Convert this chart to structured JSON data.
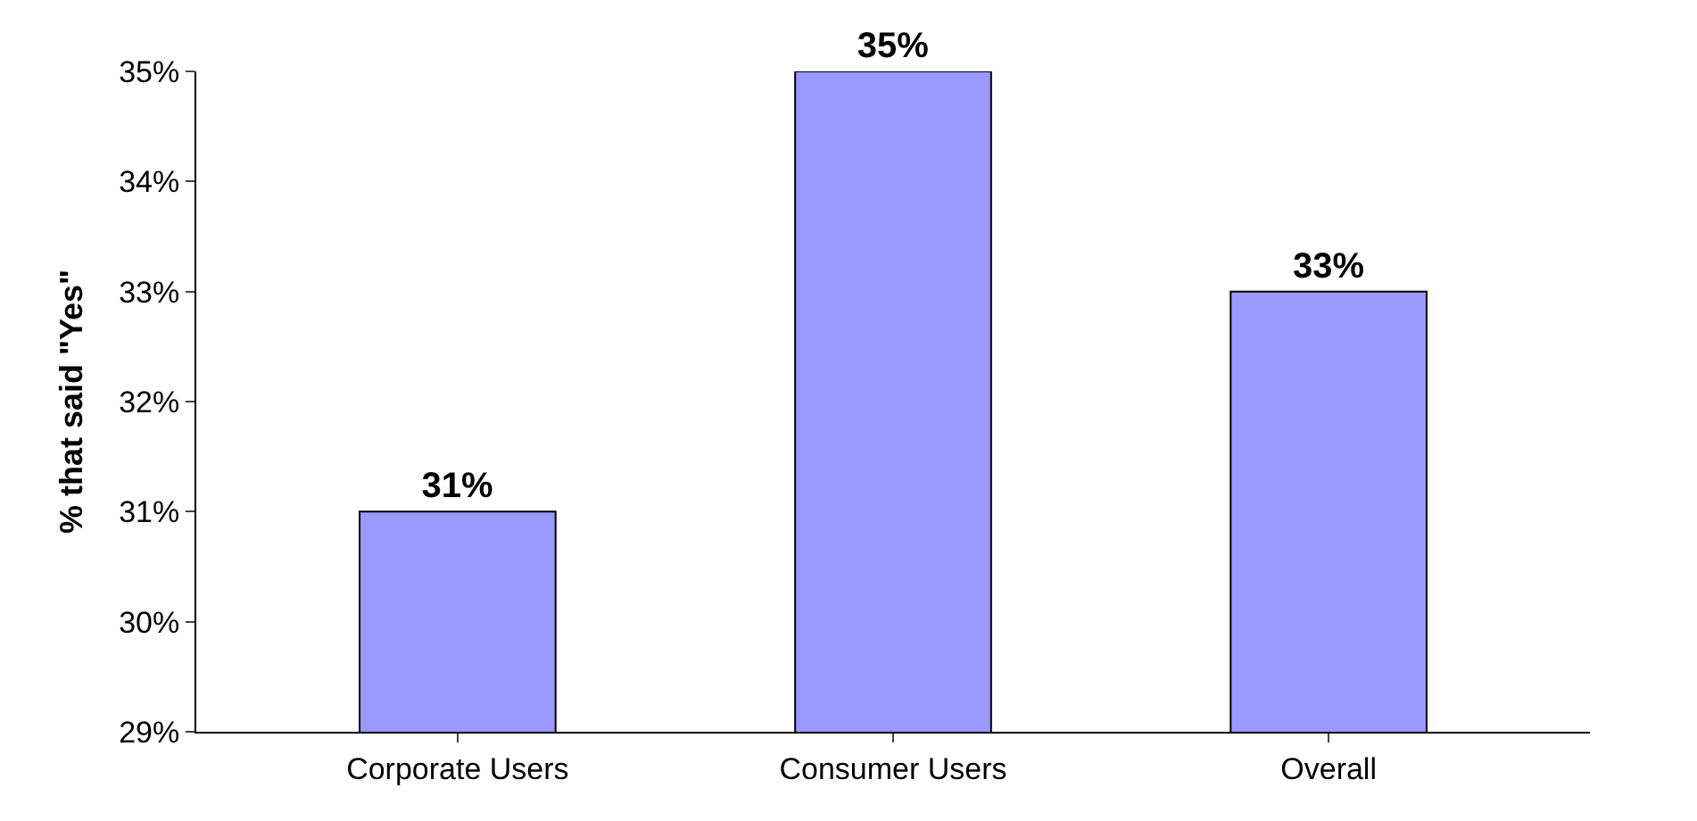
{
  "chart_data": {
    "type": "bar",
    "ylabel": "% that said \"Yes\"",
    "categories": [
      "Corporate Users",
      "Consumer Users",
      "Overall"
    ],
    "values": [
      31,
      35,
      33
    ],
    "value_labels": [
      "31%",
      "35%",
      "33%"
    ],
    "color": "#9999ff",
    "ylim": [
      29,
      35
    ],
    "yticks": [
      {
        "value": 29,
        "label": "29%"
      },
      {
        "value": 30,
        "label": "30%"
      },
      {
        "value": 31,
        "label": "31%"
      },
      {
        "value": 32,
        "label": "32%"
      },
      {
        "value": 33,
        "label": "33%"
      },
      {
        "value": 34,
        "label": "34%"
      },
      {
        "value": 35,
        "label": "35%"
      }
    ]
  }
}
